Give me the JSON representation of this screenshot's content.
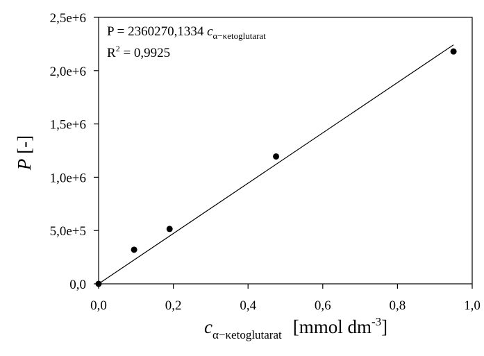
{
  "chart_data": {
    "type": "scatter",
    "xlim": [
      0,
      1
    ],
    "ylim": [
      0,
      2500000
    ],
    "x_ticks": [
      "0,0",
      "0,2",
      "0,4",
      "0,6",
      "0,8",
      "1,0"
    ],
    "y_ticks": [
      "0,0",
      "5,0e+5",
      "1,0e+6",
      "1,5e+6",
      "2,0e+6",
      "2,5e+6"
    ],
    "points": [
      {
        "x": 0,
        "y": 0
      },
      {
        "x": 0.095,
        "y": 320000
      },
      {
        "x": 0.19,
        "y": 515000
      },
      {
        "x": 0.475,
        "y": 1195000
      },
      {
        "x": 0.95,
        "y": 2180000
      }
    ],
    "fit": {
      "slope": 2360270.1334,
      "x_range": [
        0,
        0.95
      ]
    },
    "annotation": {
      "eq_prefix": "P = 2360270,1334 ",
      "eq_var": "c",
      "eq_sub": "α−κetoglutarat",
      "r2_prefix": "R",
      "r2_sup": "2",
      "r2_value": " = 0,9925"
    },
    "ylabel": {
      "var": "P",
      "rest": " [-]"
    },
    "xlabel": {
      "var": "c",
      "sub": "α−κetoglutarat",
      "unit": "[mmol dm",
      "unit_sup": "-3",
      "unit_close": "]"
    },
    "grid": false,
    "legend": "none"
  }
}
